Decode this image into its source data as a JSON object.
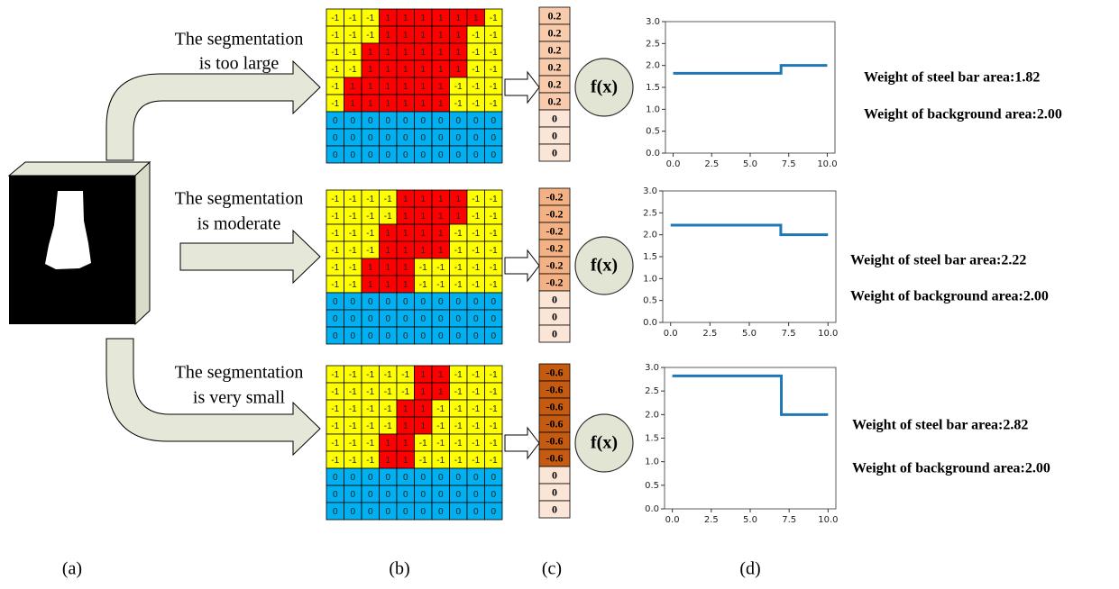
{
  "panels": [
    {
      "caption_lines": [
        "The segmentation",
        "is too large"
      ],
      "function": "f(x)",
      "column_color": "#f8cbad",
      "grid": [
        [
          -1,
          -1,
          -1,
          1,
          1,
          1,
          1,
          1,
          1,
          -1
        ],
        [
          -1,
          -1,
          -1,
          1,
          1,
          1,
          1,
          1,
          -1,
          -1
        ],
        [
          -1,
          -1,
          1,
          1,
          1,
          1,
          1,
          1,
          -1,
          -1
        ],
        [
          -1,
          -1,
          1,
          1,
          1,
          1,
          1,
          1,
          -1,
          -1
        ],
        [
          -1,
          1,
          1,
          1,
          1,
          1,
          1,
          -1,
          -1,
          -1
        ],
        [
          -1,
          1,
          1,
          1,
          1,
          1,
          1,
          -1,
          -1,
          -1
        ],
        [
          0,
          0,
          0,
          0,
          0,
          0,
          0,
          0,
          0,
          0
        ],
        [
          0,
          0,
          0,
          0,
          0,
          0,
          0,
          0,
          0,
          0
        ],
        [
          0,
          0,
          0,
          0,
          0,
          0,
          0,
          0,
          0,
          0
        ]
      ],
      "column": [
        0.2,
        0.2,
        0.2,
        0.2,
        0.2,
        0.2,
        0,
        0,
        0
      ],
      "weights": [
        "Weight of steel bar area:1.82",
        "Weight of background area:2.00"
      ]
    },
    {
      "caption_lines": [
        "The segmentation",
        "is moderate"
      ],
      "function": "f(x)",
      "column_color": "#f4b183",
      "grid": [
        [
          -1,
          -1,
          -1,
          -1,
          1,
          1,
          1,
          1,
          -1,
          -1
        ],
        [
          -1,
          -1,
          -1,
          -1,
          1,
          1,
          1,
          1,
          -1,
          -1
        ],
        [
          -1,
          -1,
          -1,
          1,
          1,
          1,
          1,
          -1,
          -1,
          -1
        ],
        [
          -1,
          -1,
          -1,
          1,
          1,
          1,
          1,
          -1,
          -1,
          -1
        ],
        [
          -1,
          -1,
          1,
          1,
          1,
          -1,
          -1,
          -1,
          -1,
          -1
        ],
        [
          -1,
          -1,
          1,
          1,
          1,
          -1,
          -1,
          -1,
          -1,
          -1
        ],
        [
          0,
          0,
          0,
          0,
          0,
          0,
          0,
          0,
          0,
          0
        ],
        [
          0,
          0,
          0,
          0,
          0,
          0,
          0,
          0,
          0,
          0
        ],
        [
          0,
          0,
          0,
          0,
          0,
          0,
          0,
          0,
          0,
          0
        ]
      ],
      "column": [
        -0.2,
        -0.2,
        -0.2,
        -0.2,
        -0.2,
        -0.2,
        0,
        0,
        0
      ],
      "weights": [
        "Weight of steel bar area:2.22",
        "Weight of background area:2.00"
      ]
    },
    {
      "caption_lines": [
        "The segmentation",
        "is very small"
      ],
      "function": "f(x)",
      "column_color": "#c55a11",
      "grid": [
        [
          -1,
          -1,
          -1,
          -1,
          -1,
          1,
          1,
          -1,
          -1,
          -1
        ],
        [
          -1,
          -1,
          -1,
          -1,
          -1,
          1,
          1,
          -1,
          -1,
          -1
        ],
        [
          -1,
          -1,
          -1,
          -1,
          1,
          1,
          -1,
          -1,
          -1,
          -1
        ],
        [
          -1,
          -1,
          -1,
          -1,
          1,
          1,
          -1,
          -1,
          -1,
          -1
        ],
        [
          -1,
          -1,
          -1,
          1,
          1,
          -1,
          -1,
          -1,
          -1,
          -1
        ],
        [
          -1,
          -1,
          -1,
          1,
          1,
          -1,
          -1,
          -1,
          -1,
          -1
        ],
        [
          0,
          0,
          0,
          0,
          0,
          0,
          0,
          0,
          0,
          0
        ],
        [
          0,
          0,
          0,
          0,
          0,
          0,
          0,
          0,
          0,
          0
        ],
        [
          0,
          0,
          0,
          0,
          0,
          0,
          0,
          0,
          0,
          0
        ]
      ],
      "column": [
        -0.6,
        -0.6,
        -0.6,
        -0.6,
        -0.6,
        -0.6,
        0,
        0,
        0
      ],
      "weights": [
        "Weight of steel bar area:2.82",
        "Weight of background area:2.00"
      ]
    }
  ],
  "captions": [
    "(a)",
    "(b)",
    "(c)",
    "(d)"
  ],
  "chart_data": [
    {
      "type": "line",
      "x": [
        0,
        7,
        7,
        10
      ],
      "values": [
        1.82,
        1.82,
        2.0,
        2.0
      ],
      "color": "#1f77b4",
      "xlim": [
        -0.5,
        10.5
      ],
      "ylim": [
        0,
        3
      ],
      "xticks": [
        {
          "value": 0,
          "label": "0.0"
        },
        {
          "value": 2.5,
          "label": "2.5"
        },
        {
          "value": 5,
          "label": "5.0"
        },
        {
          "value": 7.5,
          "label": "7.5"
        },
        {
          "value": 10,
          "label": "10.0"
        }
      ],
      "yticks": [
        {
          "value": 0,
          "label": "0.0"
        },
        {
          "value": 0.5,
          "label": "0.5"
        },
        {
          "value": 1,
          "label": "1.0"
        },
        {
          "value": 1.5,
          "label": "1.5"
        },
        {
          "value": 2,
          "label": "2.0"
        },
        {
          "value": 2.5,
          "label": "2.5"
        },
        {
          "value": 3,
          "label": "3.0"
        }
      ]
    },
    {
      "type": "line",
      "x": [
        0,
        7,
        7,
        10
      ],
      "values": [
        2.22,
        2.22,
        2.0,
        2.0
      ],
      "color": "#1f77b4",
      "xlim": [
        -0.5,
        10.5
      ],
      "ylim": [
        0,
        3
      ],
      "xticks": [
        {
          "value": 0,
          "label": "0.0"
        },
        {
          "value": 2.5,
          "label": "2.5"
        },
        {
          "value": 5,
          "label": "5.0"
        },
        {
          "value": 7.5,
          "label": "7.5"
        },
        {
          "value": 10,
          "label": "10.0"
        }
      ],
      "yticks": [
        {
          "value": 0,
          "label": "0.0"
        },
        {
          "value": 0.5,
          "label": "0.5"
        },
        {
          "value": 1,
          "label": "1.0"
        },
        {
          "value": 1.5,
          "label": "1.5"
        },
        {
          "value": 2,
          "label": "2.0"
        },
        {
          "value": 2.5,
          "label": "2.5"
        },
        {
          "value": 3,
          "label": "3.0"
        }
      ]
    },
    {
      "type": "line",
      "x": [
        0,
        7,
        7,
        10
      ],
      "values": [
        2.82,
        2.82,
        2.0,
        2.0
      ],
      "color": "#1f77b4",
      "xlim": [
        -0.5,
        10.5
      ],
      "ylim": [
        0,
        3
      ],
      "xticks": [
        {
          "value": 0,
          "label": "0.0"
        },
        {
          "value": 2.5,
          "label": "2.5"
        },
        {
          "value": 5,
          "label": "5.0"
        },
        {
          "value": 7.5,
          "label": "7.5"
        },
        {
          "value": 10,
          "label": "10.0"
        }
      ],
      "yticks": [
        {
          "value": 0,
          "label": "0.0"
        },
        {
          "value": 0.5,
          "label": "0.5"
        },
        {
          "value": 1,
          "label": "1.0"
        },
        {
          "value": 1.5,
          "label": "1.5"
        },
        {
          "value": 2,
          "label": "2.0"
        },
        {
          "value": 2.5,
          "label": "2.5"
        },
        {
          "value": 3,
          "label": "3.0"
        }
      ]
    }
  ]
}
